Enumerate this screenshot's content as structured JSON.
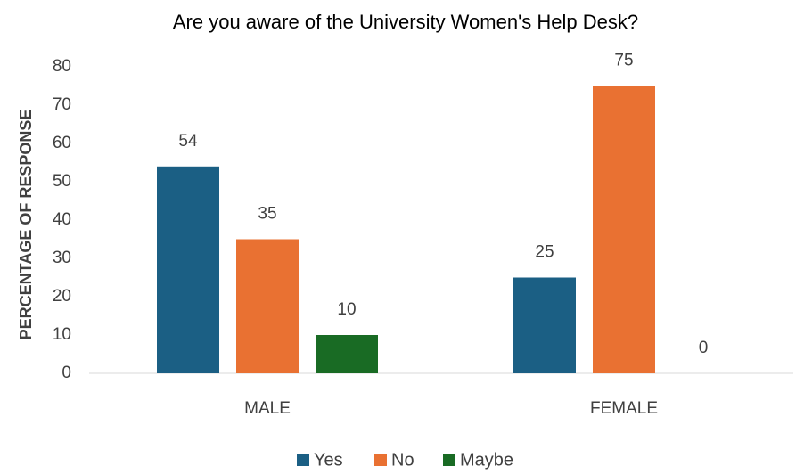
{
  "chart_data": {
    "type": "bar",
    "title": "Are you aware of the University Women's Help Desk?",
    "y_label": "PERCENTAGE OF RESPONSE",
    "categories": [
      "MALE",
      "FEMALE"
    ],
    "series": [
      {
        "name": "Yes",
        "color": "#1b5f84",
        "values": [
          54,
          25
        ]
      },
      {
        "name": "No",
        "color": "#e97132",
        "values": [
          35,
          75
        ]
      },
      {
        "name": "Maybe",
        "color": "#196b24",
        "values": [
          10,
          0
        ]
      }
    ],
    "ylim": [
      0,
      80
    ],
    "yticks": [
      0,
      10,
      20,
      30,
      40,
      50,
      60,
      70,
      80
    ],
    "grid": false,
    "legend": "bottom"
  }
}
